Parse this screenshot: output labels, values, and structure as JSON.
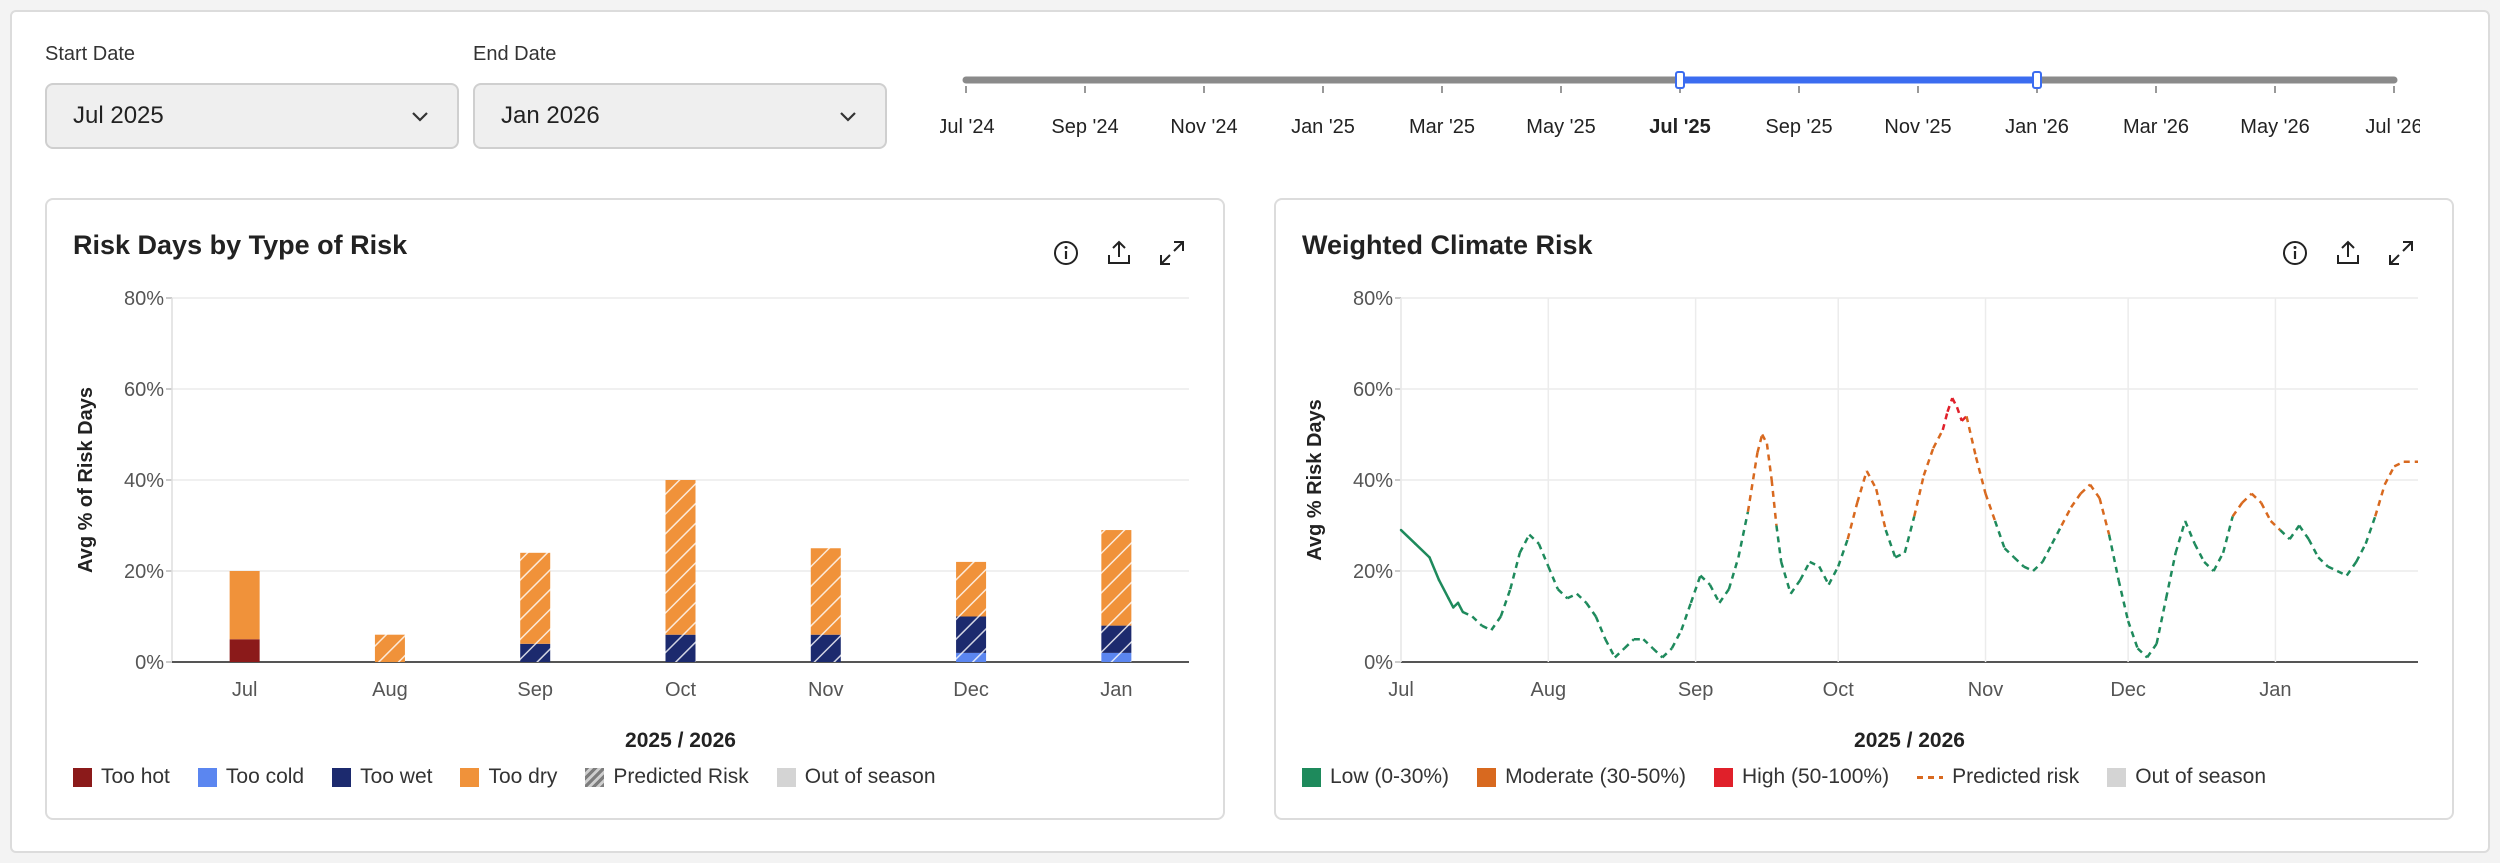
{
  "filters": {
    "start_label": "Start Date",
    "start_value": "Jul 2025",
    "end_label": "End Date",
    "end_value": "Jan 2026"
  },
  "timeline": {
    "ticks": [
      "Jul '24",
      "Sep '24",
      "Nov '24",
      "Jan '25",
      "Mar '25",
      "May '25",
      "Jul '25",
      "Sep '25",
      "Nov '25",
      "Jan '26",
      "Mar '26",
      "May '26",
      "Jul '26"
    ],
    "selected_start": "Jul '25",
    "selected_end": "Jan '26",
    "track_color": "#8a8a8a",
    "range_color": "#3b6cf0"
  },
  "chart_data": [
    {
      "type": "bar",
      "title": "Risk Days by Type of Risk",
      "xlabel": "2025 / 2026",
      "ylabel": "Avg % of Risk Days",
      "ylim": [
        0,
        80
      ],
      "yticks": [
        "0%",
        "20%",
        "40%",
        "60%",
        "80%"
      ],
      "categories": [
        "Jul",
        "Aug",
        "Sep",
        "Oct",
        "Nov",
        "Dec",
        "Jan"
      ],
      "stacked": true,
      "series": [
        {
          "name": "Too hot",
          "color": "#8b1a1a",
          "values": [
            5,
            0,
            0,
            0,
            0,
            0,
            0
          ],
          "predicted": [
            false,
            false,
            false,
            false,
            false,
            false,
            false
          ]
        },
        {
          "name": "Too cold",
          "color": "#5b86f0",
          "values": [
            0,
            0,
            0,
            0,
            0,
            2,
            2
          ],
          "predicted": [
            false,
            false,
            false,
            false,
            false,
            true,
            true
          ]
        },
        {
          "name": "Too wet",
          "color": "#1c2a6e",
          "values": [
            0,
            0,
            4,
            6,
            6,
            8,
            6
          ],
          "predicted": [
            false,
            false,
            true,
            true,
            true,
            true,
            true
          ]
        },
        {
          "name": "Too dry",
          "color": "#f0923a",
          "values": [
            15,
            6,
            20,
            34,
            19,
            12,
            21
          ],
          "predicted": [
            false,
            true,
            true,
            true,
            true,
            true,
            true
          ]
        }
      ],
      "legend": [
        {
          "label": "Too hot",
          "color": "#8b1a1a",
          "kind": "solid"
        },
        {
          "label": "Too cold",
          "color": "#5b86f0",
          "kind": "solid"
        },
        {
          "label": "Too wet",
          "color": "#1c2a6e",
          "kind": "solid"
        },
        {
          "label": "Too dry",
          "color": "#f0923a",
          "kind": "solid"
        },
        {
          "label": "Predicted Risk",
          "color": "#7d7d7d",
          "kind": "hatch"
        },
        {
          "label": "Out of season",
          "color": "#d4d4d4",
          "kind": "solid"
        }
      ],
      "grid": true
    },
    {
      "type": "line",
      "title": "Weighted Climate Risk",
      "xlabel": "2025 / 2026",
      "ylabel": "Avg % Risk Days",
      "ylim": [
        0,
        80
      ],
      "yticks": [
        "0%",
        "20%",
        "40%",
        "60%",
        "80%"
      ],
      "month_labels": [
        "Jul",
        "Aug",
        "Sep",
        "Oct",
        "Nov",
        "Dec",
        "Jan"
      ],
      "xlim_days": [
        0,
        214
      ],
      "observed": {
        "x": [
          0,
          3,
          6,
          8,
          10,
          11,
          12,
          13
        ],
        "y": [
          29,
          26,
          23,
          18,
          14,
          12,
          13,
          11
        ]
      },
      "predicted": {
        "x": [
          13,
          15,
          17,
          19,
          21,
          23,
          25,
          27,
          29,
          31,
          33,
          35,
          37,
          39,
          41,
          43,
          45,
          47,
          49,
          51,
          53,
          55,
          57,
          59,
          61,
          63,
          65,
          67,
          69,
          71,
          73,
          75,
          76,
          77,
          78,
          79,
          80,
          82,
          84,
          86,
          88,
          90,
          92,
          94,
          96,
          98,
          100,
          102,
          104,
          106,
          108,
          110,
          112,
          114,
          115,
          116,
          117,
          118,
          119,
          121,
          123,
          125,
          127,
          129,
          131,
          133,
          135,
          137,
          139,
          141,
          143,
          145,
          147,
          149,
          151,
          153,
          155,
          157,
          159,
          161,
          163,
          165,
          167,
          169,
          171,
          173,
          175,
          177,
          179,
          181,
          183,
          185,
          187,
          189,
          191,
          193,
          195,
          197,
          199,
          201,
          203,
          205,
          207,
          209,
          211,
          214
        ],
        "y": [
          11,
          10,
          8,
          7,
          10,
          16,
          24,
          28,
          26,
          21,
          16,
          14,
          15,
          13,
          10,
          5,
          1,
          3,
          5,
          5,
          3,
          1,
          3,
          7,
          13,
          19,
          17,
          13,
          16,
          23,
          33,
          46,
          50,
          48,
          40,
          30,
          22,
          15,
          18,
          22,
          21,
          17,
          21,
          27,
          35,
          42,
          38,
          29,
          23,
          24,
          32,
          41,
          47,
          51,
          55,
          58,
          56,
          53,
          54,
          45,
          37,
          31,
          25,
          23,
          21,
          20,
          22,
          26,
          30,
          34,
          37,
          39,
          36,
          28,
          18,
          9,
          3,
          1,
          4,
          14,
          24,
          31,
          26,
          22,
          20,
          24,
          32,
          35,
          37,
          35,
          31,
          29,
          27,
          30,
          27,
          23,
          21,
          20,
          19,
          22,
          26,
          32,
          39,
          43,
          44,
          44
        ]
      },
      "risk_bands": [
        {
          "label": "Low (0-30%)",
          "color": "#1e8a5c",
          "min": 0,
          "max": 30
        },
        {
          "label": "Moderate (30-50%)",
          "color": "#d8691f",
          "min": 30,
          "max": 50
        },
        {
          "label": "High (50-100%)",
          "color": "#e0202a",
          "min": 50,
          "max": 100
        }
      ],
      "legend": [
        {
          "label": "Low (0-30%)",
          "color": "#1e8a5c",
          "kind": "solid"
        },
        {
          "label": "Moderate (30-50%)",
          "color": "#d8691f",
          "kind": "solid"
        },
        {
          "label": "High (50-100%)",
          "color": "#e0202a",
          "kind": "solid"
        },
        {
          "label": "Predicted risk",
          "color": "#d8691f",
          "kind": "dash"
        },
        {
          "label": "Out of season",
          "color": "#d4d4d4",
          "kind": "solid"
        }
      ],
      "grid": true
    }
  ]
}
